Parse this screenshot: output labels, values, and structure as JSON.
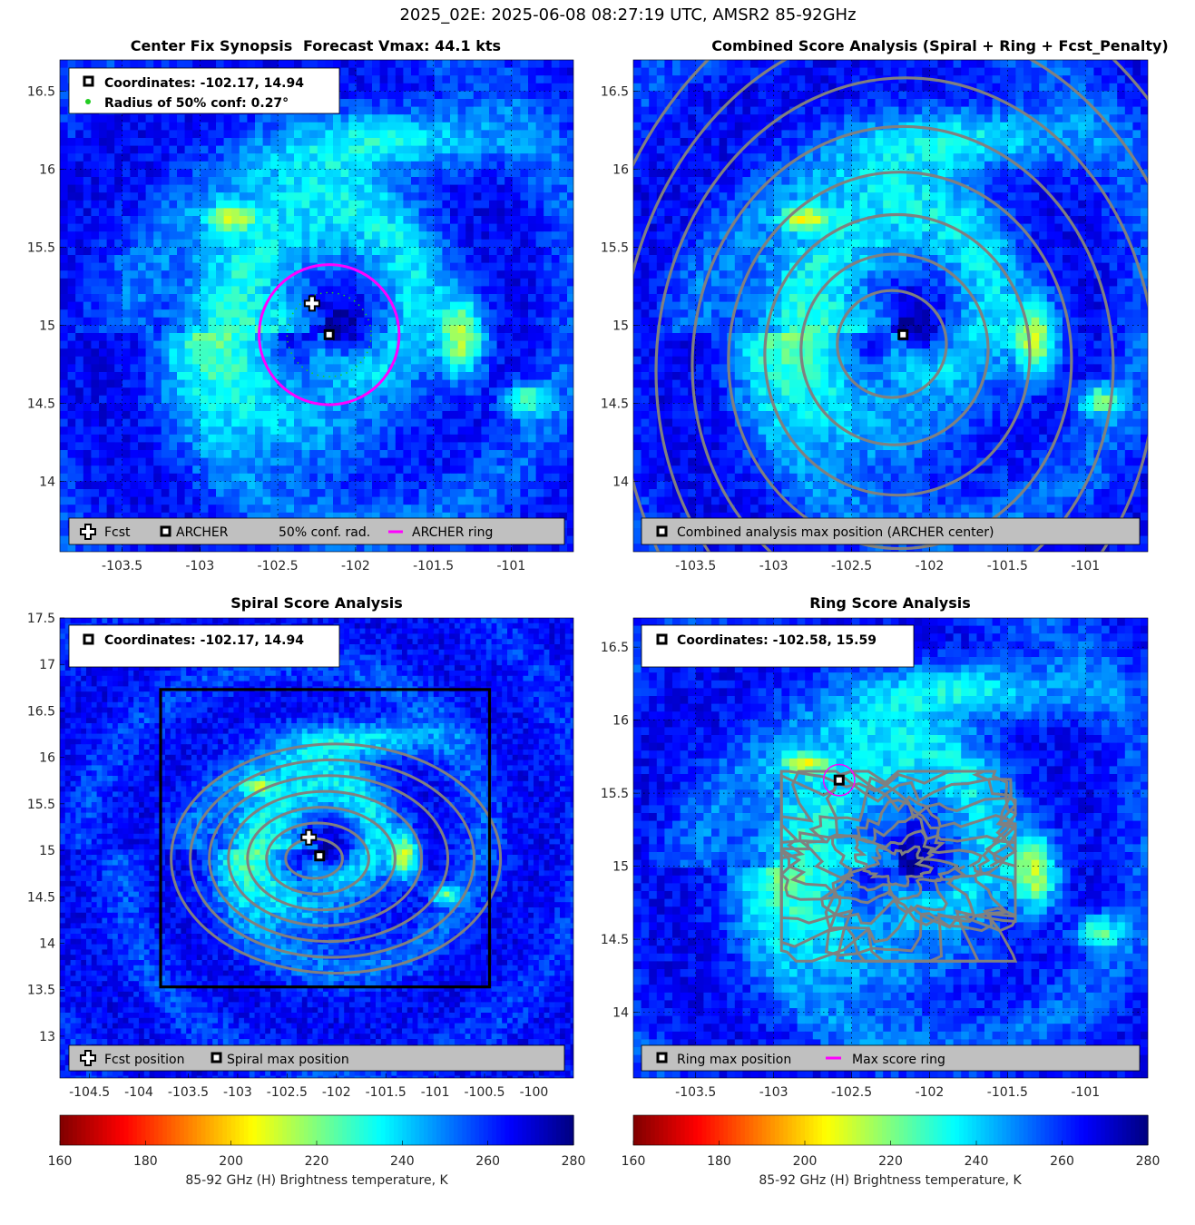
{
  "figure": {
    "suptitle": "2025_02E: 2025-06-08 08:27:19 UTC, AMSR2 85-92GHz"
  },
  "colors": {
    "ring": "#ff00ff",
    "contour": "#808080",
    "conf_dots": "#22cc22",
    "legend_bg": "#c0c0c0",
    "frame": "#000000"
  },
  "chart_data": [
    {
      "id": "synopsis",
      "type": "heatmap",
      "title_left": "Center Fix Synopsis",
      "title_right": "Forecast Vmax: 44.1 kts",
      "xlim": [
        -103.9,
        -100.6
      ],
      "ylim": [
        13.55,
        16.7
      ],
      "xticks": [
        -103.5,
        -103,
        -102.5,
        -102,
        -101.5,
        -101
      ],
      "yticks": [
        14,
        14.5,
        15,
        15.5,
        16,
        16.5
      ],
      "grid": true,
      "info_box": {
        "coordinates": "Coordinates: -102.17, 14.94",
        "radius": "Radius of 50% conf: 0.27°"
      },
      "legend": {
        "placement": "bottom",
        "entries": [
          "Fcst",
          "ARCHER",
          "50% conf. rad.",
          "ARCHER ring"
        ]
      },
      "markers": {
        "fcst": [
          -102.28,
          15.14
        ],
        "archer": [
          -102.17,
          14.94
        ]
      },
      "ring": {
        "center": [
          -102.17,
          14.94
        ],
        "radius": 0.45
      },
      "conf_radius_deg": 0.27
    },
    {
      "id": "combined",
      "type": "heatmap",
      "title": "Combined Score Analysis (Spiral + Ring + Fcst_Penalty)",
      "xlim": [
        -103.9,
        -100.6
      ],
      "ylim": [
        13.55,
        16.7
      ],
      "xticks": [
        -103.5,
        -103,
        -102.5,
        -102,
        -101.5,
        -101
      ],
      "yticks": [
        14,
        14.5,
        15,
        15.5,
        16,
        16.5
      ],
      "grid": true,
      "legend": {
        "placement": "bottom",
        "entries": [
          "Combined analysis max position (ARCHER center)"
        ]
      },
      "markers": {
        "max": [
          -102.17,
          14.94
        ]
      },
      "contour_center": [
        -102.3,
        14.95
      ],
      "contour_radii": [
        0.35,
        0.6,
        0.85,
        1.1,
        1.35,
        1.6,
        1.85,
        2.1
      ]
    },
    {
      "id": "spiral",
      "type": "heatmap",
      "title": "Spiral Score Analysis",
      "xlim": [
        -104.8,
        -99.6
      ],
      "ylim": [
        12.55,
        17.5
      ],
      "xticks": [
        -104.5,
        -104,
        -103.5,
        -103,
        -102.5,
        -102,
        -101.5,
        -101,
        -100.5,
        -100
      ],
      "yticks": [
        13,
        13.5,
        14,
        14.5,
        15,
        15.5,
        16,
        16.5,
        17,
        17.5
      ],
      "grid": false,
      "info_box": {
        "coordinates": "Coordinates: -102.17, 14.94"
      },
      "legend": {
        "placement": "bottom",
        "entries": [
          "Fcst position",
          "Spiral max position"
        ]
      },
      "markers": {
        "fcst": [
          -102.28,
          15.14
        ],
        "max": [
          -102.17,
          14.94
        ]
      },
      "box": {
        "x": [
          -103.78,
          -100.45
        ],
        "y": [
          13.53,
          16.73
        ]
      },
      "contour_center": [
        -102.3,
        14.95
      ],
      "contour_radii": [
        0.25,
        0.45,
        0.65,
        0.85,
        1.05,
        1.25,
        1.45
      ]
    },
    {
      "id": "ring",
      "type": "heatmap",
      "title": "Ring Score Analysis",
      "xlim": [
        -103.9,
        -100.6
      ],
      "ylim": [
        13.55,
        16.7
      ],
      "xticks": [
        -103.5,
        -103,
        -102.5,
        -102,
        -101.5,
        -101
      ],
      "yticks": [
        14,
        14.5,
        15,
        15.5,
        16,
        16.5
      ],
      "grid": true,
      "info_box": {
        "coordinates": "Coordinates: -102.58, 15.59"
      },
      "legend": {
        "placement": "bottom",
        "entries": [
          "Ring max position",
          "Max score ring"
        ]
      },
      "markers": {
        "max": [
          -102.58,
          15.59
        ]
      },
      "ring": {
        "center": [
          -102.58,
          15.59
        ],
        "radius": 0.1
      },
      "contour_region": {
        "x": [
          -102.95,
          -101.45
        ],
        "y": [
          14.35,
          15.65
        ]
      }
    }
  ],
  "colorbars": [
    {
      "label": "85-92 GHz (H) Brightness temperature, K",
      "ticks": [
        160,
        180,
        200,
        220,
        240,
        260,
        280
      ],
      "range": [
        160,
        280
      ]
    },
    {
      "label": "85-92 GHz (H) Brightness temperature, K",
      "ticks": [
        160,
        180,
        200,
        220,
        240,
        260,
        280
      ],
      "range": [
        160,
        280
      ]
    }
  ]
}
